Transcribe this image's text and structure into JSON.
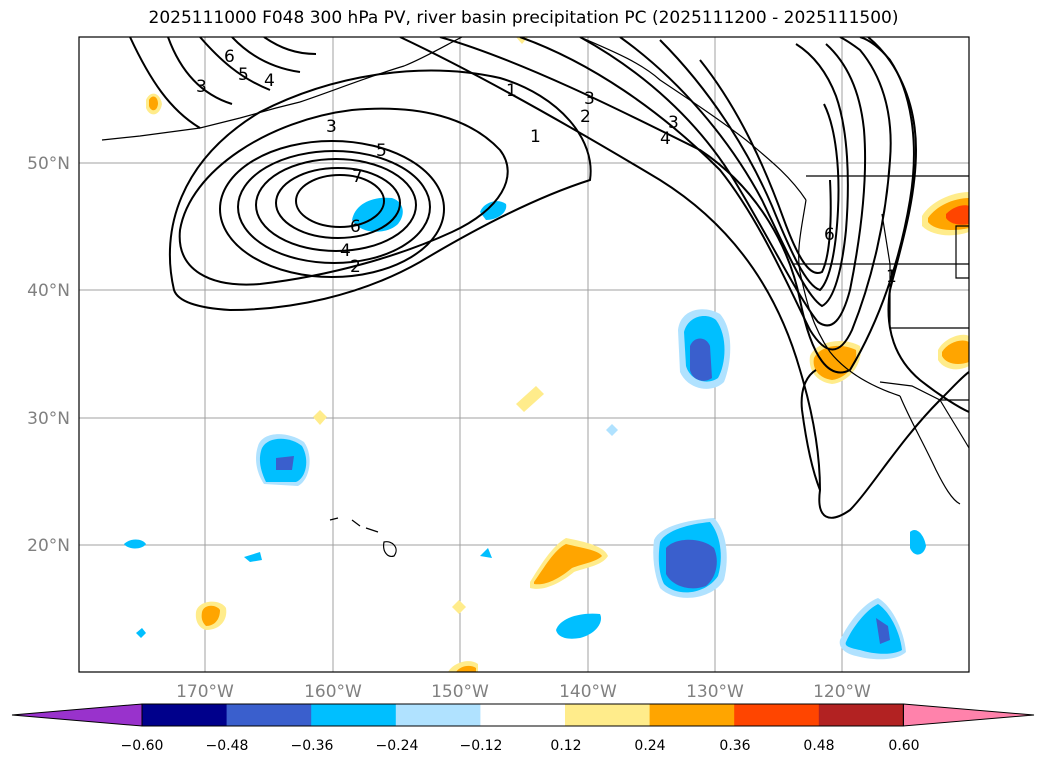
{
  "title": "2025111000 F048 300 hPa PV, river basin precipitation PC (2025111200 - 2025111500)",
  "longitude_labels": [
    "170°W",
    "160°W",
    "150°W",
    "140°W",
    "130°W",
    "120°W"
  ],
  "latitude_labels": [
    "50°N",
    "40°N",
    "30°N",
    "20°N"
  ],
  "pv_contour_labels": [
    "6",
    "5",
    "4",
    "3",
    "3",
    "5",
    "7",
    "6",
    "4",
    "2",
    "1",
    "1",
    "3",
    "2",
    "4",
    "3",
    "6",
    "1"
  ],
  "colorbar": {
    "ticks": [
      "−0.60",
      "−0.48",
      "−0.36",
      "−0.24",
      "−0.12",
      "0.12",
      "0.24",
      "0.36",
      "0.48",
      "0.60"
    ],
    "colors": [
      "#9932cc",
      "#00008b",
      "#3a5fcd",
      "#00bfff",
      "#b0e2ff",
      "#ffffff",
      "#ffec8b",
      "#ffa500",
      "#ff4500",
      "#b22222",
      "#ff82ab"
    ]
  },
  "colors": {
    "grid": "#a0a0a0",
    "tick_text": "#808080",
    "contour": "#000000",
    "frame": "#000000"
  }
}
